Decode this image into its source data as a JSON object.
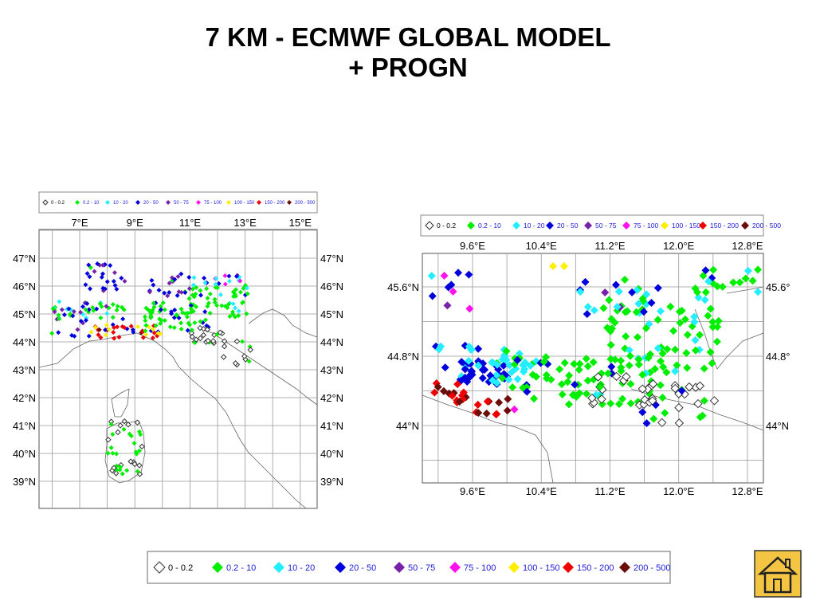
{
  "title": {
    "line1": "7 KM - ECMWF GLOBAL MODEL",
    "line2": "+ PROGN"
  },
  "legend": {
    "classes": [
      {
        "label": "0 - 0.2",
        "color": "#ffffff",
        "outline": true
      },
      {
        "label": "0.2 - 10",
        "color": "#00ee00"
      },
      {
        "label": "10 - 20",
        "color": "#22eeff"
      },
      {
        "label": "20 - 50",
        "color": "#0000dd"
      },
      {
        "label": "50 - 75",
        "color": "#7722aa"
      },
      {
        "label": "75 - 100",
        "color": "#ff11ee"
      },
      {
        "label": "100 - 150",
        "color": "#ffee00"
      },
      {
        "label": "150 - 200",
        "color": "#ee0000"
      },
      {
        "label": "200 - 500",
        "color": "#6b0d08"
      }
    ]
  },
  "map_left": {
    "lon_ticks": [
      "7°E",
      "9°E",
      "11°E",
      "13°E",
      "15°E"
    ],
    "lat_ticks": [
      "47°N",
      "46°N",
      "45°N",
      "44°N",
      "43°N",
      "42°N",
      "41°N",
      "40°N",
      "39°N"
    ]
  },
  "map_right": {
    "lon_ticks": [
      "9.6°E",
      "10.4°E",
      "11.2°E",
      "12.0°E",
      "12.8°E"
    ],
    "lat_ticks": [
      "45.6°N",
      "44.8°N",
      "44°N"
    ]
  },
  "home_icon": "home-icon"
}
